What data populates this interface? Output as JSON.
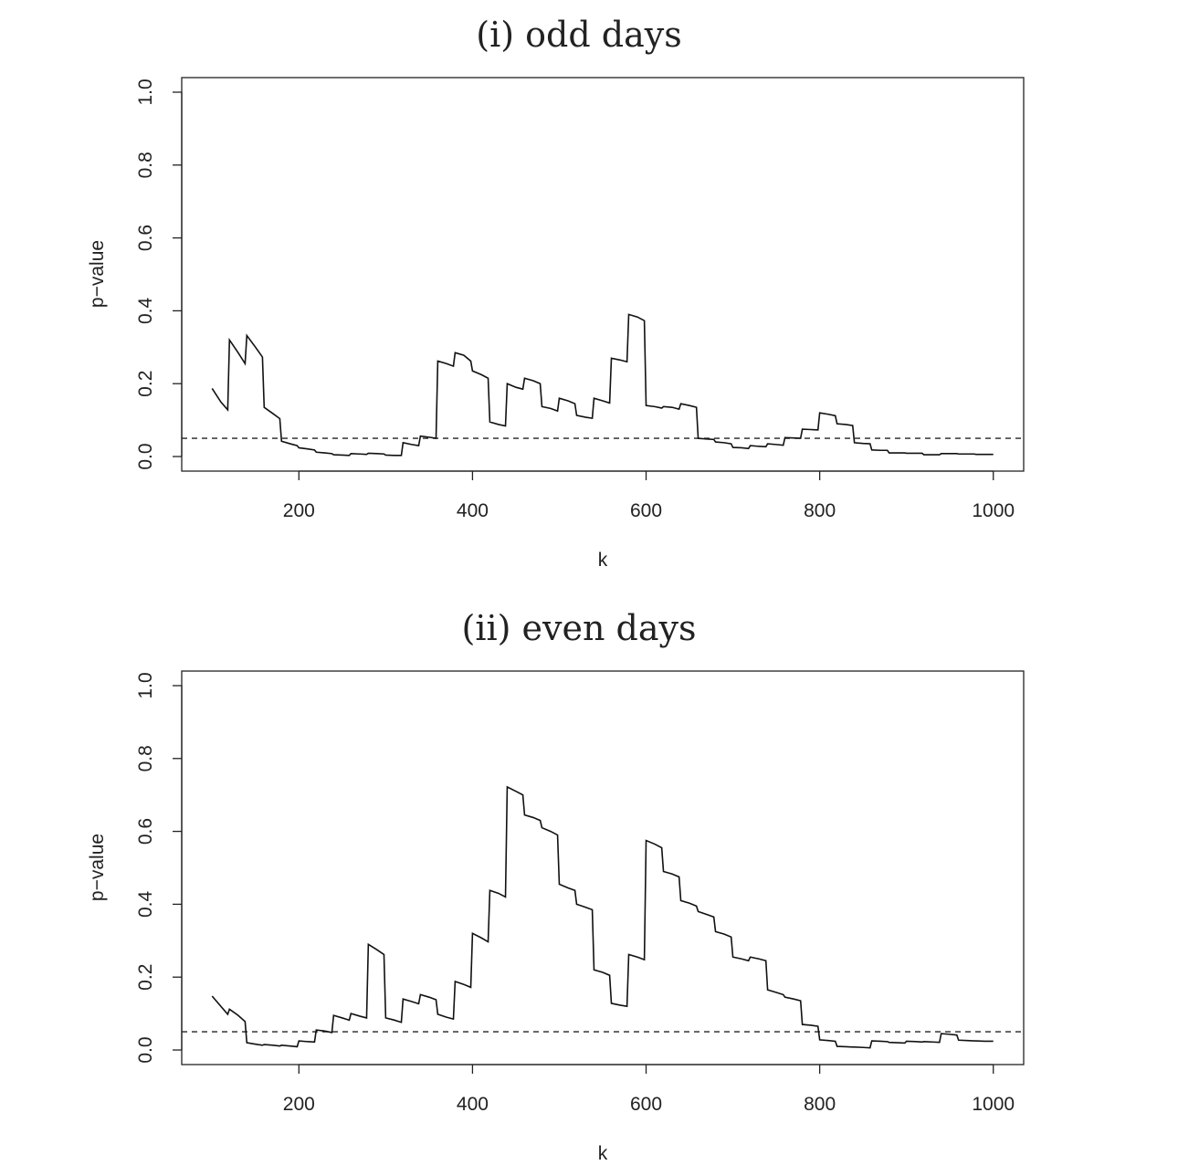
{
  "chart_data": [
    {
      "type": "line",
      "title": "(i) odd days",
      "xlabel": "k",
      "ylabel": "p−value",
      "xlim": [
        65,
        1035
      ],
      "ylim": [
        -0.04,
        1.04
      ],
      "xticks": [
        "200",
        "400",
        "600",
        "800",
        "1000"
      ],
      "xtick_values": [
        200,
        400,
        600,
        800,
        1000
      ],
      "yticks": [
        "0.0",
        "0.2",
        "0.4",
        "0.6",
        "0.8",
        "1.0"
      ],
      "ytick_values": [
        0,
        0.2,
        0.4,
        0.6,
        0.8,
        1.0
      ],
      "reference_line": {
        "y": 0.05,
        "style": "dashed"
      },
      "series": [
        {
          "x": [
            100,
            110,
            118,
            120,
            130,
            138,
            140,
            150,
            158,
            160,
            170,
            178,
            180,
            190,
            198,
            200,
            210,
            218,
            220,
            230,
            238,
            240,
            250,
            258,
            260,
            270,
            278,
            280,
            290,
            298,
            300,
            310,
            318,
            320,
            330,
            338,
            340,
            350,
            358,
            360,
            370,
            378,
            380,
            390,
            398,
            400,
            410,
            418,
            420,
            430,
            438,
            440,
            450,
            458,
            460,
            470,
            478,
            480,
            490,
            498,
            500,
            510,
            518,
            520,
            530,
            538,
            540,
            550,
            558,
            560,
            570,
            578,
            580,
            590,
            598,
            600,
            610,
            618,
            620,
            630,
            638,
            640,
            650,
            658,
            660,
            670,
            678,
            680,
            690,
            698,
            700,
            710,
            718,
            720,
            730,
            738,
            740,
            750,
            758,
            760,
            770,
            778,
            780,
            790,
            798,
            800,
            810,
            818,
            820,
            830,
            838,
            840,
            850,
            858,
            860,
            870,
            878,
            880,
            890,
            898,
            900,
            910,
            918,
            920,
            930,
            938,
            940,
            950,
            958,
            960,
            970,
            978,
            980,
            990,
            1000
          ],
          "y": [
            0.187,
            0.15,
            0.128,
            0.32,
            0.285,
            0.255,
            0.332,
            0.3,
            0.273,
            0.135,
            0.118,
            0.104,
            0.042,
            0.035,
            0.03,
            0.024,
            0.021,
            0.018,
            0.012,
            0.01,
            0.008,
            0.005,
            0.004,
            0.003,
            0.008,
            0.007,
            0.006,
            0.009,
            0.008,
            0.007,
            0.004,
            0.003,
            0.003,
            0.038,
            0.033,
            0.03,
            0.056,
            0.053,
            0.05,
            0.262,
            0.255,
            0.248,
            0.285,
            0.278,
            0.262,
            0.235,
            0.225,
            0.215,
            0.095,
            0.088,
            0.084,
            0.2,
            0.19,
            0.185,
            0.215,
            0.208,
            0.2,
            0.137,
            0.132,
            0.125,
            0.16,
            0.153,
            0.145,
            0.113,
            0.108,
            0.105,
            0.16,
            0.153,
            0.147,
            0.27,
            0.265,
            0.26,
            0.39,
            0.383,
            0.373,
            0.14,
            0.137,
            0.133,
            0.137,
            0.135,
            0.13,
            0.145,
            0.14,
            0.135,
            0.05,
            0.048,
            0.047,
            0.04,
            0.038,
            0.035,
            0.025,
            0.024,
            0.022,
            0.03,
            0.028,
            0.027,
            0.035,
            0.033,
            0.031,
            0.052,
            0.051,
            0.05,
            0.075,
            0.074,
            0.073,
            0.12,
            0.116,
            0.112,
            0.09,
            0.088,
            0.085,
            0.038,
            0.036,
            0.035,
            0.018,
            0.017,
            0.017,
            0.01,
            0.01,
            0.01,
            0.009,
            0.009,
            0.009,
            0.005,
            0.005,
            0.005,
            0.008,
            0.008,
            0.008,
            0.007,
            0.007,
            0.007,
            0.006,
            0.006,
            0.006
          ]
        }
      ]
    },
    {
      "type": "line",
      "title": "(ii) even days",
      "xlabel": "k",
      "ylabel": "p−value",
      "xlim": [
        65,
        1035
      ],
      "ylim": [
        -0.04,
        1.04
      ],
      "xticks": [
        "200",
        "400",
        "600",
        "800",
        "1000"
      ],
      "xtick_values": [
        200,
        400,
        600,
        800,
        1000
      ],
      "yticks": [
        "0.0",
        "0.2",
        "0.4",
        "0.6",
        "0.8",
        "1.0"
      ],
      "ytick_values": [
        0,
        0.2,
        0.4,
        0.6,
        0.8,
        1.0
      ],
      "reference_line": {
        "y": 0.05,
        "style": "dashed"
      },
      "series": [
        {
          "x": [
            100,
            110,
            118,
            120,
            130,
            138,
            140,
            150,
            158,
            160,
            170,
            178,
            180,
            190,
            198,
            200,
            210,
            218,
            220,
            230,
            238,
            240,
            250,
            258,
            260,
            270,
            278,
            280,
            290,
            298,
            300,
            310,
            318,
            320,
            330,
            338,
            340,
            350,
            358,
            360,
            370,
            378,
            380,
            390,
            398,
            400,
            410,
            418,
            420,
            430,
            438,
            440,
            450,
            458,
            460,
            470,
            478,
            480,
            490,
            498,
            500,
            510,
            518,
            520,
            530,
            538,
            540,
            550,
            558,
            560,
            570,
            578,
            580,
            590,
            598,
            600,
            610,
            618,
            620,
            630,
            638,
            640,
            650,
            658,
            660,
            670,
            678,
            680,
            690,
            698,
            700,
            710,
            718,
            720,
            730,
            738,
            740,
            750,
            758,
            760,
            770,
            778,
            780,
            790,
            798,
            800,
            810,
            818,
            820,
            830,
            838,
            840,
            850,
            858,
            860,
            870,
            878,
            880,
            890,
            898,
            900,
            910,
            918,
            920,
            930,
            938,
            940,
            950,
            958,
            960,
            970,
            978,
            980,
            990,
            1000
          ],
          "y": [
            0.148,
            0.12,
            0.098,
            0.112,
            0.095,
            0.078,
            0.02,
            0.016,
            0.013,
            0.015,
            0.013,
            0.011,
            0.013,
            0.011,
            0.009,
            0.025,
            0.023,
            0.022,
            0.055,
            0.052,
            0.048,
            0.095,
            0.088,
            0.082,
            0.1,
            0.093,
            0.088,
            0.29,
            0.275,
            0.262,
            0.088,
            0.082,
            0.076,
            0.14,
            0.133,
            0.127,
            0.152,
            0.145,
            0.138,
            0.098,
            0.09,
            0.085,
            0.188,
            0.18,
            0.172,
            0.32,
            0.308,
            0.297,
            0.438,
            0.43,
            0.42,
            0.722,
            0.71,
            0.7,
            0.645,
            0.638,
            0.63,
            0.61,
            0.6,
            0.59,
            0.455,
            0.445,
            0.438,
            0.4,
            0.392,
            0.385,
            0.22,
            0.213,
            0.205,
            0.128,
            0.123,
            0.12,
            0.262,
            0.255,
            0.248,
            0.575,
            0.565,
            0.555,
            0.49,
            0.483,
            0.475,
            0.41,
            0.403,
            0.395,
            0.38,
            0.372,
            0.365,
            0.325,
            0.318,
            0.31,
            0.255,
            0.25,
            0.245,
            0.255,
            0.25,
            0.245,
            0.165,
            0.158,
            0.152,
            0.145,
            0.14,
            0.135,
            0.07,
            0.068,
            0.065,
            0.028,
            0.026,
            0.024,
            0.01,
            0.009,
            0.008,
            0.008,
            0.007,
            0.006,
            0.025,
            0.024,
            0.023,
            0.021,
            0.02,
            0.019,
            0.024,
            0.023,
            0.022,
            0.023,
            0.022,
            0.021,
            0.045,
            0.043,
            0.041,
            0.027,
            0.026,
            0.025,
            0.025,
            0.024,
            0.024
          ]
        }
      ]
    }
  ]
}
